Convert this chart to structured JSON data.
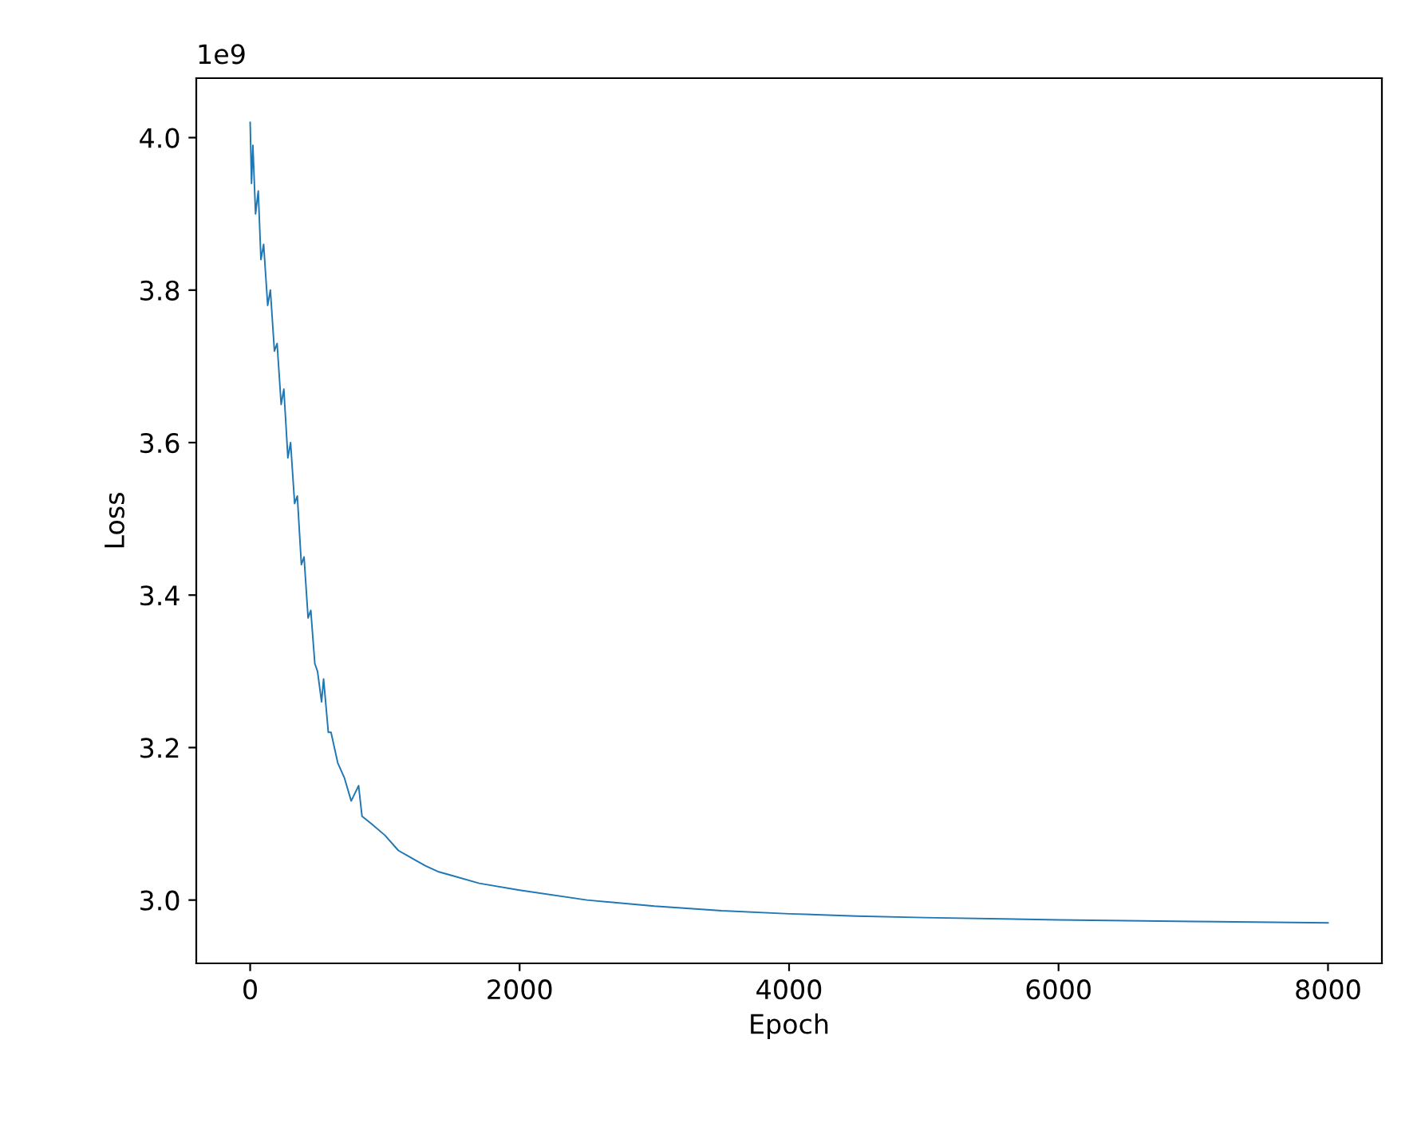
{
  "chart_data": {
    "type": "line",
    "xlabel": "Epoch",
    "ylabel": "Loss",
    "annotations": [
      "1e9"
    ],
    "x": [
      0,
      10,
      20,
      40,
      60,
      80,
      100,
      130,
      150,
      180,
      200,
      230,
      250,
      280,
      300,
      330,
      350,
      380,
      400,
      430,
      450,
      480,
      500,
      530,
      545,
      580,
      600,
      650,
      700,
      750,
      805,
      830,
      900,
      1000,
      1100,
      1200,
      1300,
      1400,
      1500,
      1700,
      2000,
      2500,
      3000,
      3500,
      4000,
      4500,
      5000,
      6000,
      7000,
      8000
    ],
    "series": [
      {
        "color": "#1f77b4",
        "values": [
          4.02,
          3.94,
          3.99,
          3.9,
          3.93,
          3.84,
          3.86,
          3.78,
          3.8,
          3.72,
          3.73,
          3.65,
          3.67,
          3.58,
          3.6,
          3.52,
          3.53,
          3.44,
          3.45,
          3.37,
          3.38,
          3.31,
          3.3,
          3.26,
          3.29,
          3.22,
          3.22,
          3.18,
          3.16,
          3.13,
          3.15,
          3.11,
          3.1,
          3.085,
          3.065,
          3.055,
          3.045,
          3.037,
          3.032,
          3.022,
          3.013,
          3.0,
          2.992,
          2.986,
          2.982,
          2.979,
          2.977,
          2.974,
          2.972,
          2.97
        ]
      }
    ],
    "xlim": [
      -400,
      8400
    ],
    "xticks": [
      0,
      2000,
      4000,
      6000,
      8000
    ],
    "ylim": [
      2.917,
      4.078
    ],
    "yticks": [
      {
        "value": 3.0,
        "label": "3.0"
      },
      {
        "value": 3.2,
        "label": "3.2"
      },
      {
        "value": 3.4,
        "label": "3.4"
      },
      {
        "value": 3.6,
        "label": "3.6"
      },
      {
        "value": 3.8,
        "label": "3.8"
      },
      {
        "value": 4.0,
        "label": "4.0"
      }
    ],
    "grid": false,
    "marker": "none",
    "line_style": "solid"
  }
}
